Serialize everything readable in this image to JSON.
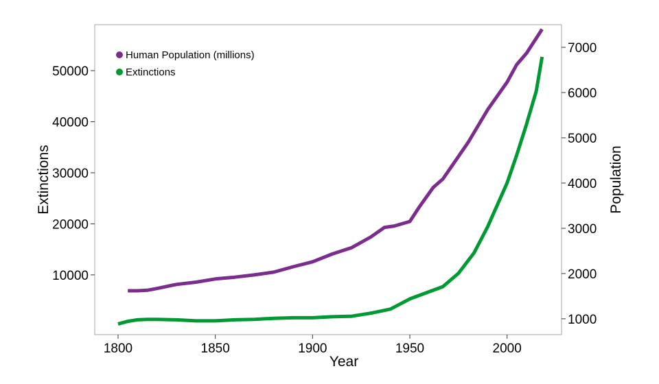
{
  "chart_data": {
    "type": "line",
    "title": "",
    "xlabel": "Year",
    "ylabel_left": "Extinctions",
    "ylabel_right": "Population",
    "xlim": [
      1788,
      2028
    ],
    "ylim_left": [
      -1700,
      59000
    ],
    "ylim_right": [
      650,
      7500
    ],
    "x_ticks": [
      1800,
      1850,
      1900,
      1950,
      2000
    ],
    "y_ticks_left": [
      10000,
      20000,
      30000,
      40000,
      50000
    ],
    "y_ticks_right": [
      1000,
      2000,
      3000,
      4000,
      5000,
      6000,
      7000
    ],
    "grid": false,
    "legend_position": "top-left",
    "series": [
      {
        "name": "Human Population (millions)",
        "axis": "right",
        "color": "#7B2D8E",
        "x": [
          1805,
          1810,
          1815,
          1820,
          1830,
          1840,
          1850,
          1860,
          1870,
          1880,
          1890,
          1900,
          1910,
          1920,
          1930,
          1937,
          1942,
          1950,
          1955,
          1962,
          1967,
          1972,
          1980,
          1990,
          2000,
          2005,
          2010,
          2018
        ],
        "values": [
          1620,
          1620,
          1630,
          1670,
          1760,
          1810,
          1880,
          1920,
          1970,
          2030,
          2150,
          2260,
          2430,
          2570,
          2810,
          3020,
          3050,
          3150,
          3480,
          3900,
          4090,
          4400,
          4900,
          5620,
          6230,
          6620,
          6870,
          7400
        ]
      },
      {
        "name": "Extinctions",
        "axis": "left",
        "color": "#009933",
        "x": [
          1800,
          1805,
          1810,
          1815,
          1820,
          1830,
          1840,
          1850,
          1860,
          1870,
          1880,
          1890,
          1900,
          1910,
          1920,
          1930,
          1940,
          1950,
          1960,
          1967,
          1975,
          1983,
          1990,
          2000,
          2005,
          2010,
          2015,
          2018
        ],
        "values": [
          400,
          900,
          1200,
          1300,
          1300,
          1200,
          1000,
          1000,
          1200,
          1300,
          1500,
          1600,
          1600,
          1800,
          1900,
          2500,
          3300,
          5300,
          6700,
          7700,
          10300,
          14300,
          19400,
          28000,
          33500,
          39500,
          46000,
          52700
        ]
      }
    ]
  }
}
